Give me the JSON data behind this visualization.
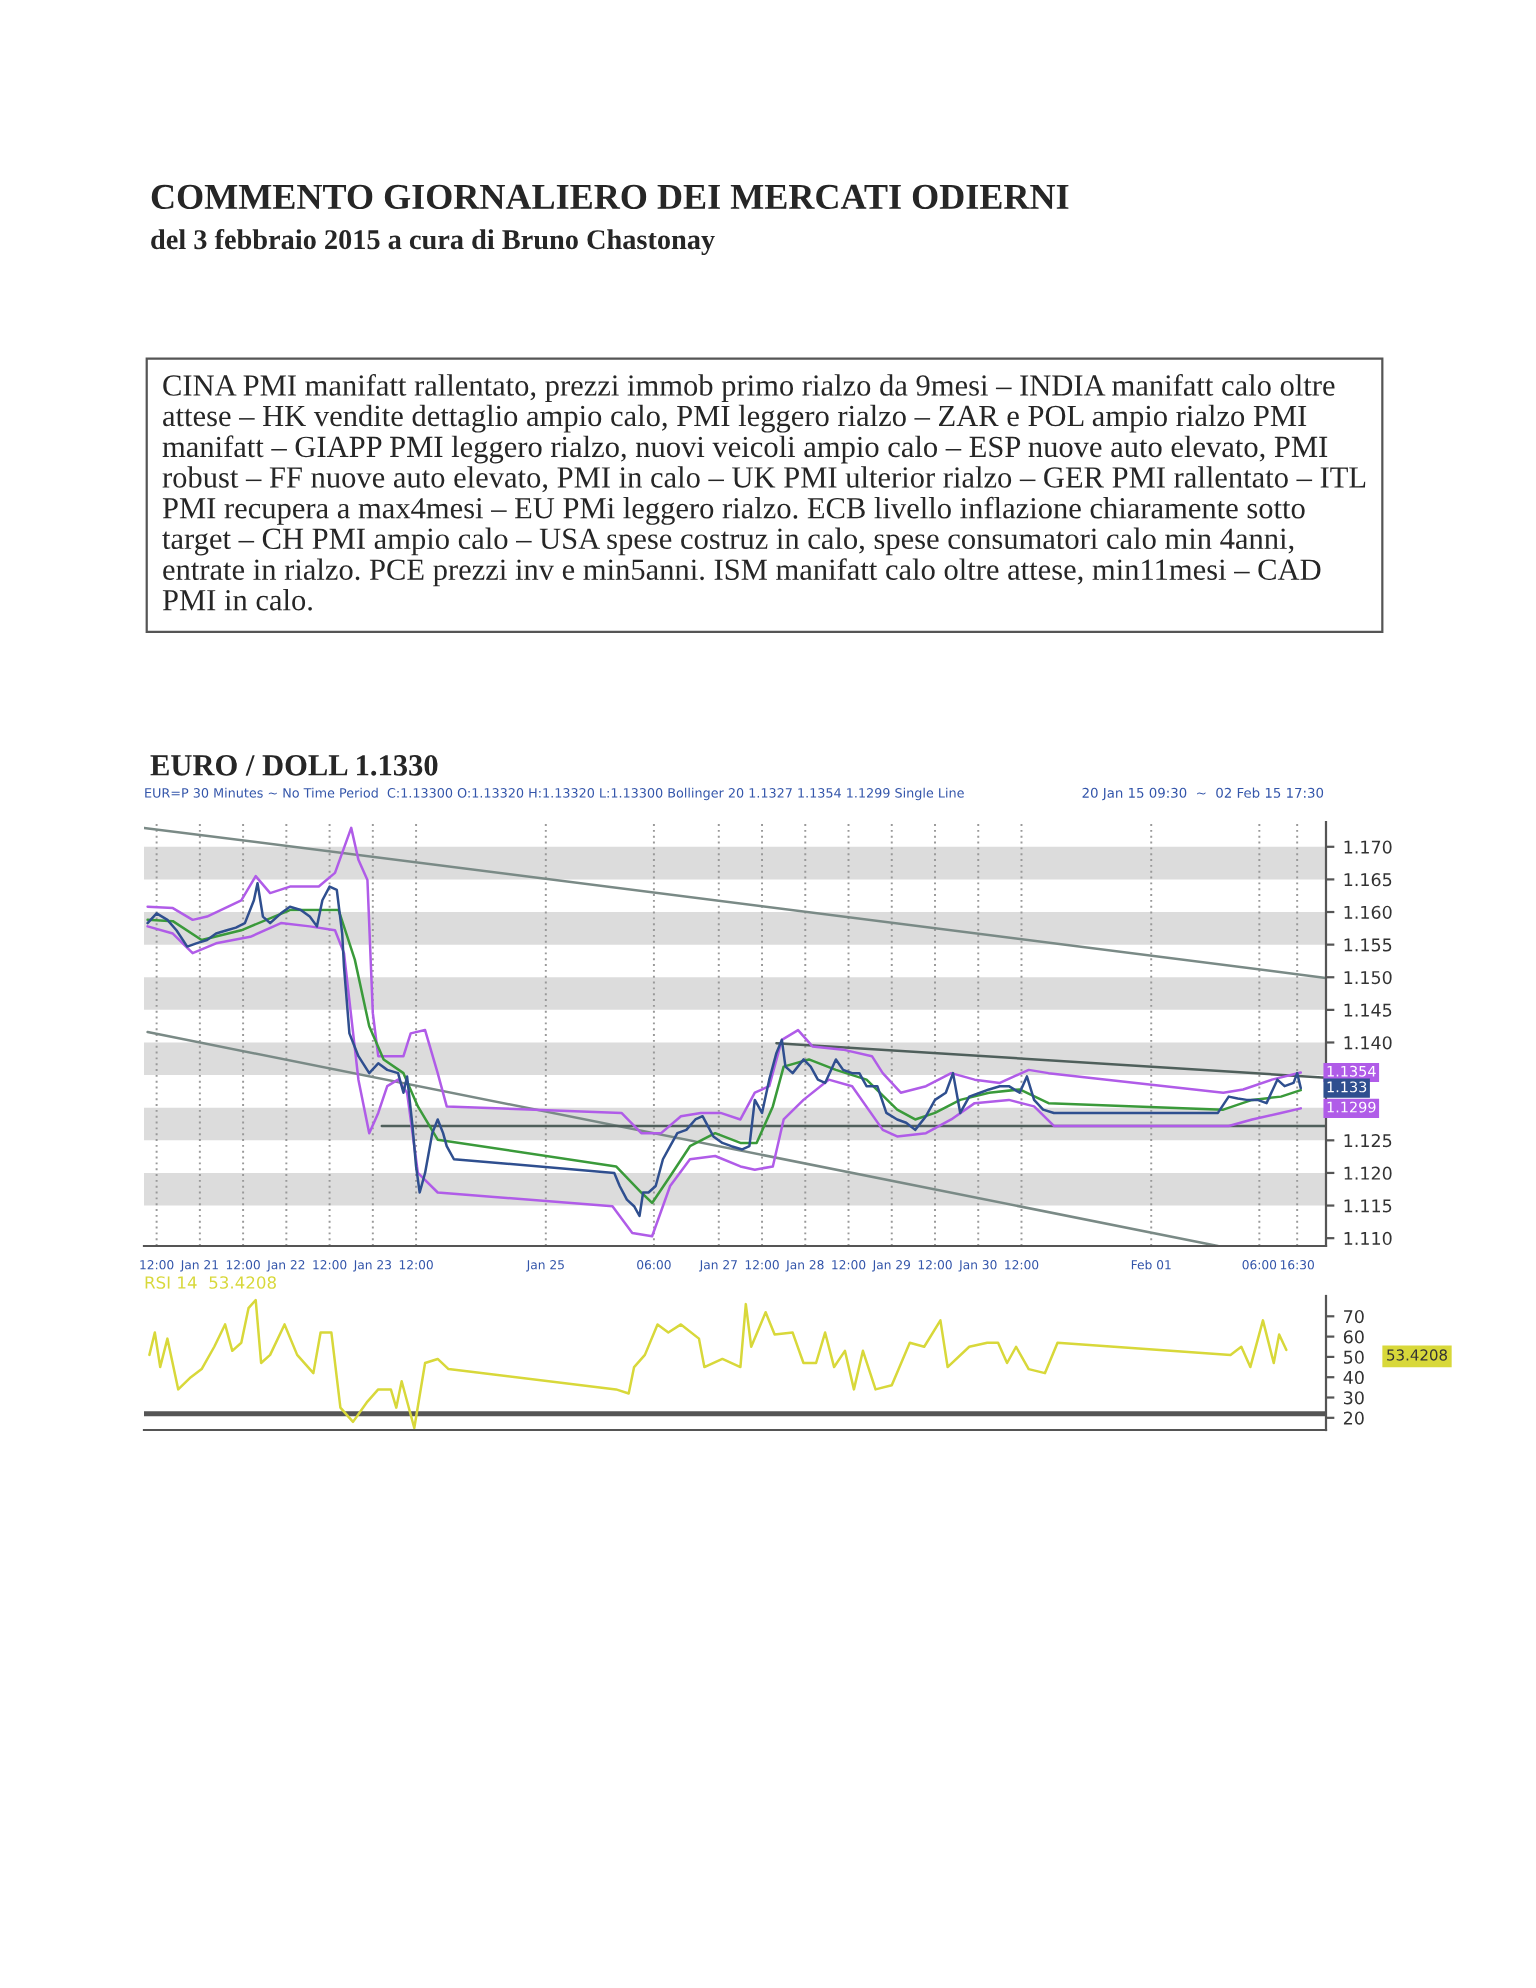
{
  "chart_data": [
    {
      "type": "line",
      "title": "EURO / DOLL 1.1330",
      "subtitle": "EUR=P 30 Minutes ~ No Time Period  C:1.13300 O:1.13320 H:1.13320 L:1.13300 Bollinger 20 1.1327 1.1354 1.1299 Single Line",
      "annotations": [
        "COMMENTO GIORNALIERO DEI MERCATI ODIERNI",
        "del 3 febbraio 2015 a cura di Bruno Chastonay",
        "CINA PMI manifatt rallentato, prezzi immob primo rialzo da 9mesi – INDIA manifatt calo oltre attese – HK vendite dettaglio ampio calo, PMI leggero rialzo – ZAR e POL ampio rialzo PMI manifatt – GIAPP PMI leggero rialzo, nuovi veicoli ampio calo – ESP nuove auto elevato, PMI robust – FF nuove auto elevato, PMI in calo – UK PMI ulterior rialzo – GER PMI rallentato – ITL PMI recupera a max4mesi – EU PMi leggero rialzo. ECB livello inflazione chiaramente sotto target – CH PMI ampio calo – USA spese costruz in calo, spese consumatori calo min 4anni, entrate in rialzo. PCE prezzi inv e min5anni. ISM manifatt calo oltre attese, min11mesi – CAD PMI in calo.",
        "20 Jan 15 09:30  ~  02 Feb 15 17:30",
        {
          "text": "1.1354",
          "x": "2015-02-02T17:30",
          "y": 1.1354
        },
        {
          "text": "1.133",
          "x": "2015-02-02T17:30",
          "y": 1.133
        },
        {
          "text": "1.1299",
          "x": "2015-02-02T17:30",
          "y": 1.1299
        }
      ],
      "xlim": [
        "2015-01-20T08:30",
        "2015-02-03T00:30"
      ],
      "ylim": [
        1.1088,
        1.1738
      ],
      "xticks": [
        {
          "value": "2015-01-20T12:00",
          "label": "12:00"
        },
        {
          "value": "2015-01-21",
          "label": "Jan 21"
        },
        {
          "value": "2015-01-21T12:00",
          "label": "12:00"
        },
        {
          "value": "2015-01-22",
          "label": "Jan 22"
        },
        {
          "value": "2015-01-22T12:00",
          "label": "12:00"
        },
        {
          "value": "2015-01-23",
          "label": "Jan 23"
        },
        {
          "value": "2015-01-23T12:00",
          "label": "12:00"
        },
        {
          "value": "2015-01-25",
          "label": "Jan 25"
        },
        {
          "value": "2015-01-26T06:00",
          "label": "06:00"
        },
        {
          "value": "2015-01-27",
          "label": "Jan 27"
        },
        {
          "value": "2015-01-27T12:00",
          "label": "12:00"
        },
        {
          "value": "2015-01-28",
          "label": "Jan 28"
        },
        {
          "value": "2015-01-28T12:00",
          "label": "12:00"
        },
        {
          "value": "2015-01-29",
          "label": "Jan 29"
        },
        {
          "value": "2015-01-29T12:00",
          "label": "12:00"
        },
        {
          "value": "2015-01-30",
          "label": "Jan 30"
        },
        {
          "value": "2015-01-30T12:00",
          "label": "12:00"
        },
        {
          "value": "2015-02-01",
          "label": "Feb 01"
        },
        {
          "value": "2015-02-02T06:00",
          "label": "06:00"
        },
        {
          "value": "2015-02-02T16:30",
          "label": "16:30"
        }
      ],
      "yticks": [
        {
          "value": 1.17,
          "label": "1.170"
        },
        {
          "value": 1.165,
          "label": "1.165"
        },
        {
          "value": 1.16,
          "label": "1.160"
        },
        {
          "value": 1.155,
          "label": "1.155"
        },
        {
          "value": 1.15,
          "label": "1.150"
        },
        {
          "value": 1.145,
          "label": "1.145"
        },
        {
          "value": 1.14,
          "label": "1.140"
        },
        {
          "value": 1.125,
          "label": "1.125"
        },
        {
          "value": 1.12,
          "label": "1.120"
        },
        {
          "value": 1.115,
          "label": "1.115"
        },
        {
          "value": 1.11,
          "label": "1.110"
        }
      ],
      "grid": "x",
      "bands": [
        {
          "axis": "y",
          "from": 1.165,
          "to": 1.17,
          "color": "#dcdcdc"
        },
        {
          "axis": "y",
          "from": 1.155,
          "to": 1.16,
          "color": "#dcdcdc"
        },
        {
          "axis": "y",
          "from": 1.145,
          "to": 1.15,
          "color": "#dcdcdc"
        },
        {
          "axis": "y",
          "from": 1.135,
          "to": 1.14,
          "color": "#dcdcdc"
        },
        {
          "axis": "y",
          "from": 1.125,
          "to": 1.13,
          "color": "#dcdcdc"
        },
        {
          "axis": "y",
          "from": 1.115,
          "to": 1.12,
          "color": "#dcdcdc"
        }
      ],
      "series": [
        {
          "color": "#7a8a86",
          "x": [
            "2015-01-20T08:30",
            "2015-02-03T00:30"
          ],
          "values": [
            1.1729,
            1.1499
          ]
        },
        {
          "color": "#7a8a86",
          "x": [
            "2015-01-20T09:30",
            "2015-02-01T18:30"
          ],
          "values": [
            1.1416,
            1.1088
          ]
        },
        {
          "color": "#4f5f5b",
          "x": [
            "2015-01-23T02:30",
            "2015-02-03T00:30"
          ],
          "values": [
            1.1272,
            1.1272
          ]
        },
        {
          "color": "#4f5f5b",
          "x": [
            "2015-01-27T16:00",
            "2015-02-03T00:30"
          ],
          "values": [
            1.1399,
            1.1346
          ]
        },
        {
          "color": "#b05ce8",
          "x": [
            "2015-01-20T09:30",
            "2015-01-20T16:30",
            "2015-01-20T22:00",
            "2015-01-21T02:00",
            "2015-01-21T11:30",
            "2015-01-21T15:30",
            "2015-01-21T19:30",
            "2015-01-22T01:00",
            "2015-01-22T09:00",
            "2015-01-22T13:30",
            "2015-01-22T18:00",
            "2015-01-22T20:00",
            "2015-01-22T22:30",
            "2015-01-23T00:00",
            "2015-01-23T01:30",
            "2015-01-23T05:30",
            "2015-01-23T08:30",
            "2015-01-23T10:30",
            "2015-01-23T14:30",
            "2015-01-23T18:00",
            "2015-01-23T20:30",
            "2015-01-25T21:00",
            "2015-01-26T02:30",
            "2015-01-26T08:00",
            "2015-01-26T13:30",
            "2015-01-26T19:00",
            "2015-01-27T00:30",
            "2015-01-27T06:00",
            "2015-01-27T10:00",
            "2015-01-27T14:00",
            "2015-01-27T17:30",
            "2015-01-27T22:00",
            "2015-01-28T02:00",
            "2015-01-28T10:30",
            "2015-01-28T18:30",
            "2015-01-28T21:30",
            "2015-01-29T02:30",
            "2015-01-29T09:30",
            "2015-01-29T16:30",
            "2015-01-29T23:00",
            "2015-01-30T06:00",
            "2015-01-30T14:00",
            "2015-01-30T19:30",
            "2015-02-01T20:00",
            "2015-02-02T01:30",
            "2015-02-02T09:30",
            "2015-02-02T17:30"
          ],
          "values": [
            1.1608,
            1.1606,
            1.1588,
            1.1593,
            1.1618,
            1.1655,
            1.1629,
            1.1639,
            1.1639,
            1.166,
            1.1729,
            1.168,
            1.1649,
            1.1445,
            1.1379,
            1.1379,
            1.1379,
            1.1414,
            1.1419,
            1.1353,
            1.1302,
            1.1292,
            1.1261,
            1.1261,
            1.1287,
            1.1292,
            1.1292,
            1.1282,
            1.1323,
            1.1333,
            1.1404,
            1.1419,
            1.1394,
            1.1389,
            1.1379,
            1.1353,
            1.1323,
            1.1333,
            1.1353,
            1.1343,
            1.1338,
            1.1358,
            1.1353,
            1.1323,
            1.1328,
            1.1343,
            1.1354
          ]
        },
        {
          "color": "#b05ce8",
          "x": [
            "2015-01-20T09:30",
            "2015-01-20T16:30",
            "2015-01-20T22:00",
            "2015-01-21T04:30",
            "2015-01-21T14:00",
            "2015-01-21T22:30",
            "2015-01-22T06:30",
            "2015-01-22T13:30",
            "2015-01-22T16:00",
            "2015-01-22T20:00",
            "2015-01-22T23:00",
            "2015-01-23T01:30",
            "2015-01-23T04:00",
            "2015-01-23T07:00",
            "2015-01-23T09:30",
            "2015-01-23T12:30",
            "2015-01-23T18:00",
            "2015-01-25T18:30",
            "2015-01-26T00:00",
            "2015-01-26T05:30",
            "2015-01-26T10:30",
            "2015-01-26T16:00",
            "2015-01-26T23:00",
            "2015-01-27T06:00",
            "2015-01-27T10:00",
            "2015-01-27T15:00",
            "2015-01-27T18:00",
            "2015-01-27T23:30",
            "2015-01-28T06:30",
            "2015-01-28T13:00",
            "2015-01-28T21:30",
            "2015-01-29T01:30",
            "2015-01-29T09:30",
            "2015-01-29T16:30",
            "2015-01-29T23:00",
            "2015-01-30T08:30",
            "2015-01-30T15:30",
            "2015-01-30T21:00",
            "2015-02-01T21:30",
            "2015-02-02T04:00",
            "2015-02-02T12:00",
            "2015-02-02T17:30"
          ],
          "values": [
            1.1578,
            1.1567,
            1.1537,
            1.1552,
            1.1562,
            1.1583,
            1.1578,
            1.1572,
            1.1537,
            1.1343,
            1.1261,
            1.1292,
            1.1333,
            1.1343,
            1.1323,
            1.12,
            1.117,
            1.1149,
            1.1108,
            1.1103,
            1.118,
            1.1221,
            1.1226,
            1.121,
            1.1205,
            1.121,
            1.1282,
            1.1312,
            1.1343,
            1.1333,
            1.1266,
            1.1256,
            1.1261,
            1.1282,
            1.1307,
            1.1312,
            1.1302,
            1.1272,
            1.1272,
            1.1282,
            1.1292,
            1.1299
          ]
        },
        {
          "color": "#3a9a3a",
          "x": [
            "2015-01-20T09:30",
            "2015-01-20T16:30",
            "2015-01-21T00:30",
            "2015-01-21T11:30",
            "2015-01-22T01:00",
            "2015-01-22T14:30",
            "2015-01-22T19:00",
            "2015-01-22T23:00",
            "2015-01-23T03:00",
            "2015-01-23T08:30",
            "2015-01-23T12:30",
            "2015-01-23T18:00",
            "2015-01-25T19:30",
            "2015-01-26T02:30",
            "2015-01-26T05:30",
            "2015-01-26T10:30",
            "2015-01-26T16:00",
            "2015-01-26T23:00",
            "2015-01-27T06:00",
            "2015-01-27T10:30",
            "2015-01-27T15:00",
            "2015-01-27T18:00",
            "2015-01-28T01:00",
            "2015-01-28T08:30",
            "2015-01-28T17:00",
            "2015-01-29T01:30",
            "2015-01-29T06:30",
            "2015-01-29T12:00",
            "2015-01-29T19:00",
            "2015-01-30T03:00",
            "2015-01-30T11:30",
            "2015-01-30T19:30",
            "2015-02-01T20:00",
            "2015-02-02T04:00",
            "2015-02-02T12:00",
            "2015-02-02T17:30"
          ],
          "values": [
            1.1588,
            1.1586,
            1.1557,
            1.1572,
            1.1603,
            1.1603,
            1.1527,
            1.1425,
            1.1374,
            1.1353,
            1.1302,
            1.1251,
            1.121,
            1.117,
            1.1154,
            1.1195,
            1.1241,
            1.1261,
            1.1246,
            1.1246,
            1.1302,
            1.1363,
            1.1374,
            1.1358,
            1.1343,
            1.1297,
            1.1282,
            1.1292,
            1.1312,
            1.1323,
            1.1328,
            1.1307,
            1.1297,
            1.1312,
            1.1317,
            1.1327
          ]
        },
        {
          "color": "#2f4f8f",
          "x": [
            "2015-01-20T09:30",
            "2015-01-20T12:00",
            "2015-01-20T15:00",
            "2015-01-20T17:30",
            "2015-01-20T20:30",
            "2015-01-20T23:00",
            "2015-01-21T02:00",
            "2015-01-21T04:30",
            "2015-01-21T07:30",
            "2015-01-21T10:00",
            "2015-01-21T12:30",
            "2015-01-21T15:00",
            "2015-01-21T16:00",
            "2015-01-21T17:30",
            "2015-01-21T19:30",
            "2015-01-21T22:30",
            "2015-01-22T01:00",
            "2015-01-22T04:00",
            "2015-01-22T06:30",
            "2015-01-22T08:30",
            "2015-01-22T10:00",
            "2015-01-22T12:00",
            "2015-01-22T14:00",
            "2015-01-22T15:30",
            "2015-01-22T16:00",
            "2015-01-22T17:30",
            "2015-01-22T20:00",
            "2015-01-22T23:00",
            "2015-01-23T01:30",
            "2015-01-23T04:00",
            "2015-01-23T07:00",
            "2015-01-23T08:30",
            "2015-01-23T09:30",
            "2015-01-23T11:00",
            "2015-01-23T12:00",
            "2015-01-23T13:00",
            "2015-01-23T14:30",
            "2015-01-23T16:30",
            "2015-01-23T18:00",
            "2015-01-23T19:30",
            "2015-01-23T20:30",
            "2015-01-23T22:30",
            "2015-01-25T19:00",
            "2015-01-25T20:30",
            "2015-01-25T22:30",
            "2015-01-26T00:30",
            "2015-01-26T02:00",
            "2015-01-26T03:00",
            "2015-01-26T04:30",
            "2015-01-26T06:30",
            "2015-01-26T08:30",
            "2015-01-26T10:30",
            "2015-01-26T12:30",
            "2015-01-26T15:00",
            "2015-01-26T17:30",
            "2015-01-26T19:30",
            "2015-01-26T22:30",
            "2015-01-27T01:00",
            "2015-01-27T03:30",
            "2015-01-27T06:30",
            "2015-01-27T08:30",
            "2015-01-27T10:00",
            "2015-01-27T12:00",
            "2015-01-27T14:00",
            "2015-01-27T16:00",
            "2015-01-27T17:30",
            "2015-01-27T18:30",
            "2015-01-27T20:30",
            "2015-01-27T23:30",
            "2015-01-28T01:30",
            "2015-01-28T03:30",
            "2015-01-28T05:30",
            "2015-01-28T08:30",
            "2015-01-28T10:30",
            "2015-01-28T13:00",
            "2015-01-28T15:00",
            "2015-01-28T17:00",
            "2015-01-28T20:00",
            "2015-01-28T22:30",
            "2015-01-29T01:30",
            "2015-01-29T04:00",
            "2015-01-29T06:30",
            "2015-01-29T09:30",
            "2015-01-29T12:00",
            "2015-01-29T15:00",
            "2015-01-29T17:00",
            "2015-01-29T19:00",
            "2015-01-29T21:30",
            "2015-01-30T00:30",
            "2015-01-30T03:00",
            "2015-01-30T06:00",
            "2015-01-30T08:30",
            "2015-01-30T11:30",
            "2015-01-30T13:30",
            "2015-01-30T15:30",
            "2015-01-30T18:00",
            "2015-01-30T21:00",
            "2015-02-01T18:30",
            "2015-02-01T21:30",
            "2015-02-02T00:00",
            "2015-02-02T02:30",
            "2015-02-02T05:30",
            "2015-02-02T08:00",
            "2015-02-02T11:00",
            "2015-02-02T13:00",
            "2015-02-02T15:30",
            "2015-02-02T16:30",
            "2015-02-02T17:30"
          ],
          "values": [
            1.1583,
            1.1598,
            1.1588,
            1.1572,
            1.1547,
            1.1552,
            1.1557,
            1.1567,
            1.1572,
            1.1576,
            1.1583,
            1.1618,
            1.1644,
            1.1593,
            1.1583,
            1.1598,
            1.1608,
            1.1603,
            1.1593,
            1.1578,
            1.1618,
            1.1639,
            1.1634,
            1.1567,
            1.1516,
            1.1414,
            1.1379,
            1.1353,
            1.1368,
            1.1358,
            1.1353,
            1.1323,
            1.1348,
            1.1272,
            1.121,
            1.117,
            1.12,
            1.1261,
            1.1282,
            1.1261,
            1.1241,
            1.1221,
            1.12,
            1.118,
            1.1159,
            1.1149,
            1.1134,
            1.117,
            1.117,
            1.118,
            1.1221,
            1.1241,
            1.1261,
            1.1266,
            1.1282,
            1.1287,
            1.1256,
            1.1246,
            1.1241,
            1.1236,
            1.1241,
            1.1312,
            1.1292,
            1.1343,
            1.1384,
            1.1404,
            1.1363,
            1.1353,
            1.1374,
            1.1363,
            1.1343,
            1.1338,
            1.1374,
            1.1358,
            1.1353,
            1.1353,
            1.1333,
            1.1333,
            1.1292,
            1.1282,
            1.1277,
            1.1266,
            1.1287,
            1.1312,
            1.1323,
            1.1353,
            1.1292,
            1.1317,
            1.1323,
            1.1328,
            1.1333,
            1.1333,
            1.1323,
            1.1348,
            1.1312,
            1.1297,
            1.1292,
            1.1292,
            1.1317,
            1.1314,
            1.1312,
            1.1312,
            1.1307,
            1.1343,
            1.1333,
            1.1338,
            1.1353,
            1.133
          ]
        }
      ]
    },
    {
      "type": "line",
      "title": "RSI 14  53.4208",
      "annotations": [
        "53.4208"
      ],
      "xlim": [
        "2015-01-20T08:30",
        "2015-02-03T00:30"
      ],
      "ylim": [
        14,
        80
      ],
      "yticks": [
        {
          "value": 70,
          "label": "70"
        },
        {
          "value": 60,
          "label": "60"
        },
        {
          "value": 50,
          "label": "50"
        },
        {
          "value": 40,
          "label": "40"
        },
        {
          "value": 30,
          "label": "30"
        },
        {
          "value": 20,
          "label": "20"
        }
      ],
      "tick_labels": "y",
      "ref_lines": [
        {
          "axis": "y",
          "value": 22,
          "color": "#555555"
        }
      ],
      "series": [
        {
          "color": "#d8d83a",
          "x": [
            "2015-01-20T10:00",
            "2015-01-20T11:30",
            "2015-01-20T13:00",
            "2015-01-20T15:00",
            "2015-01-20T18:00",
            "2015-01-20T21:30",
            "2015-01-21T00:30",
            "2015-01-21T04:00",
            "2015-01-21T07:00",
            "2015-01-21T09:00",
            "2015-01-21T11:30",
            "2015-01-21T13:30",
            "2015-01-21T15:30",
            "2015-01-21T17:00",
            "2015-01-21T19:30",
            "2015-01-21T23:30",
            "2015-01-22T03:00",
            "2015-01-22T07:30",
            "2015-01-22T09:30",
            "2015-01-22T12:30",
            "2015-01-22T15:00",
            "2015-01-22T18:30",
            "2015-01-22T22:30",
            "2015-01-23T01:30",
            "2015-01-23T05:00",
            "2015-01-23T06:30",
            "2015-01-23T08:00",
            "2015-01-23T11:30",
            "2015-01-23T14:30",
            "2015-01-23T18:00",
            "2015-01-23T21:00",
            "2015-01-25T19:30",
            "2015-01-25T23:00",
            "2015-01-26T00:30",
            "2015-01-26T03:30",
            "2015-01-26T07:00",
            "2015-01-26T10:00",
            "2015-01-26T13:30",
            "2015-01-26T18:30",
            "2015-01-26T20:00",
            "2015-01-27T01:00",
            "2015-01-27T06:00",
            "2015-01-27T07:30",
            "2015-01-27T09:00",
            "2015-01-27T13:00",
            "2015-01-27T15:30",
            "2015-01-27T20:30",
            "2015-01-27T23:30",
            "2015-01-28T03:00",
            "2015-01-28T05:30",
            "2015-01-28T08:00",
            "2015-01-28T11:00",
            "2015-01-28T13:30",
            "2015-01-28T16:00",
            "2015-01-28T19:30",
            "2015-01-29T00:00",
            "2015-01-29T05:00",
            "2015-01-29T09:00",
            "2015-01-29T13:30",
            "2015-01-29T15:30",
            "2015-01-29T21:30",
            "2015-01-30T02:30",
            "2015-01-30T05:30",
            "2015-01-30T08:00",
            "2015-01-30T10:30",
            "2015-01-30T14:00",
            "2015-01-30T18:30",
            "2015-01-30T22:00",
            "2015-02-01T22:00",
            "2015-02-02T01:00",
            "2015-02-02T03:30",
            "2015-02-02T07:00",
            "2015-02-02T10:00",
            "2015-02-02T11:30",
            "2015-02-02T13:30"
          ],
          "values": [
            51,
            62,
            45,
            59,
            34,
            40,
            44,
            55,
            66,
            53,
            57,
            74,
            78,
            47,
            51,
            66,
            51,
            42,
            62,
            62,
            25,
            18,
            28,
            34,
            34,
            25,
            38,
            15,
            47,
            49,
            44,
            34,
            32,
            45,
            51,
            66,
            62,
            66,
            59,
            45,
            49,
            45,
            76,
            55,
            72,
            61,
            62,
            47,
            47,
            62,
            45,
            53,
            34,
            53,
            34,
            36,
            57,
            55,
            68,
            45,
            55,
            57,
            57,
            47,
            55,
            44,
            42,
            57,
            51,
            55,
            45,
            68,
            47,
            61,
            53.4208
          ]
        }
      ]
    }
  ]
}
